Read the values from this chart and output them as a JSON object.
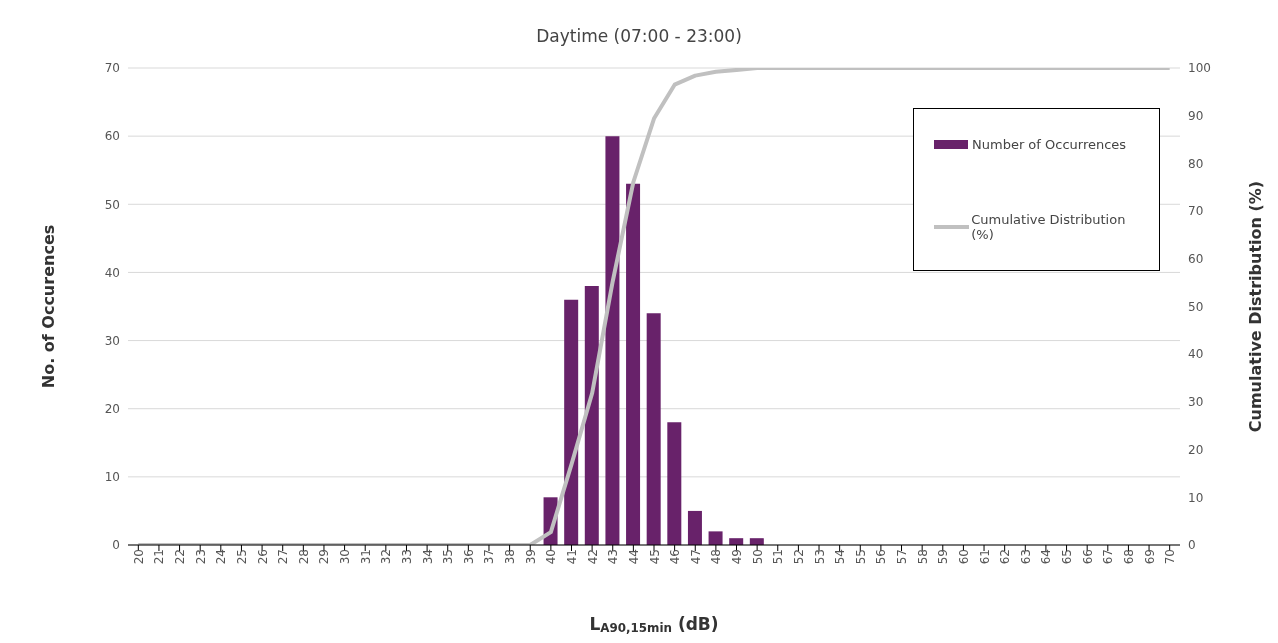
{
  "chart_data": {
    "type": "bar",
    "title": "Daytime (07:00 - 23:00)",
    "xlabel": "L$_{A90,15min}$ (dB)",
    "ylabel": "No. of Occurences",
    "y2label": "Cumulative Distribution (%)",
    "categories": [
      "20",
      "21",
      "22",
      "23",
      "24",
      "25",
      "26",
      "27",
      "28",
      "29",
      "30",
      "31",
      "32",
      "33",
      "34",
      "35",
      "36",
      "37",
      "38",
      "39",
      "40",
      "41",
      "42",
      "43",
      "44",
      "45",
      "46",
      "47",
      "48",
      "49",
      "50",
      "51",
      "52",
      "53",
      "54",
      "55",
      "56",
      "57",
      "58",
      "59",
      "60",
      "61",
      "62",
      "63",
      "64",
      "65",
      "66",
      "67",
      "68",
      "69",
      "70"
    ],
    "series": [
      {
        "name": "Number of Occurrences",
        "color": "#68226a",
        "values": [
          0,
          0,
          0,
          0,
          0,
          0,
          0,
          0,
          0,
          0,
          0,
          0,
          0,
          0,
          0,
          0,
          0,
          0,
          0,
          0,
          7,
          36,
          38,
          60,
          53,
          34,
          18,
          5,
          2,
          1,
          1,
          0,
          0,
          0,
          0,
          0,
          0,
          0,
          0,
          0,
          0,
          0,
          0,
          0,
          0,
          0,
          0,
          0,
          0,
          0,
          0
        ]
      },
      {
        "name": "Cumulative Distribution (%)",
        "type": "line",
        "axis": "y2",
        "color": "#c0c0c0",
        "values": [
          0,
          0,
          0,
          0,
          0,
          0,
          0,
          0,
          0,
          0,
          0,
          0,
          0,
          0,
          0,
          0,
          0,
          0,
          0,
          0,
          2.7,
          16.9,
          31.8,
          55.3,
          76.1,
          89.4,
          96.5,
          98.4,
          99.2,
          99.6,
          100,
          100,
          100,
          100,
          100,
          100,
          100,
          100,
          100,
          100,
          100,
          100,
          100,
          100,
          100,
          100,
          100,
          100,
          100,
          100,
          100
        ]
      }
    ],
    "ylim": [
      0,
      70
    ],
    "yticks": [
      0,
      10,
      20,
      30,
      40,
      50,
      60,
      70
    ],
    "y2lim": [
      0,
      100
    ],
    "y2ticks": [
      0,
      10,
      20,
      30,
      40,
      50,
      60,
      70,
      80,
      90,
      100
    ],
    "grid": "y",
    "legend": "top right",
    "marker": "none"
  }
}
